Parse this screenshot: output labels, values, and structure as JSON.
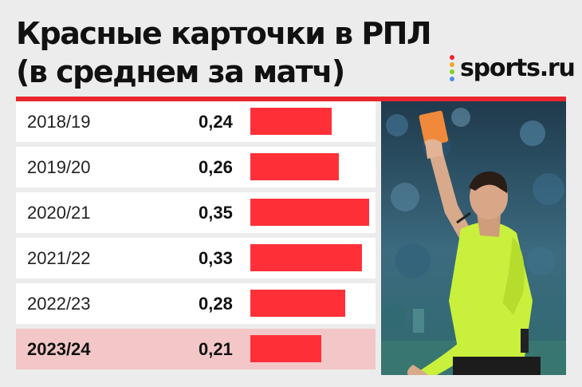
{
  "title": {
    "line1": "Красные карточки в РПЛ",
    "line2": "(в среднем за матч)"
  },
  "logo": {
    "text": "sports.ru",
    "dot_colors": [
      "#e8262c",
      "#f5a623",
      "#7ed321",
      "#4a90e2"
    ]
  },
  "colors": {
    "bar": "#ff3038",
    "accent": "#e8262c",
    "highlight_row": "#f3c7c7"
  },
  "photo": {
    "icon": "referee-red-card-photo"
  },
  "chart_data": {
    "type": "bar",
    "orientation": "horizontal",
    "categories": [
      "2018/19",
      "2019/20",
      "2020/21",
      "2021/22",
      "2022/23",
      "2023/24"
    ],
    "values": [
      0.24,
      0.26,
      0.35,
      0.33,
      0.28,
      0.21
    ],
    "value_labels": [
      "0,24",
      "0,26",
      "0,35",
      "0,33",
      "0,28",
      "0,21"
    ],
    "highlighted_category": "2023/24",
    "title": "Красные карточки в РПЛ",
    "subtitle": "(в среднем за матч)",
    "xlim": [
      0,
      0.35
    ],
    "grid": false,
    "legend": "none"
  }
}
